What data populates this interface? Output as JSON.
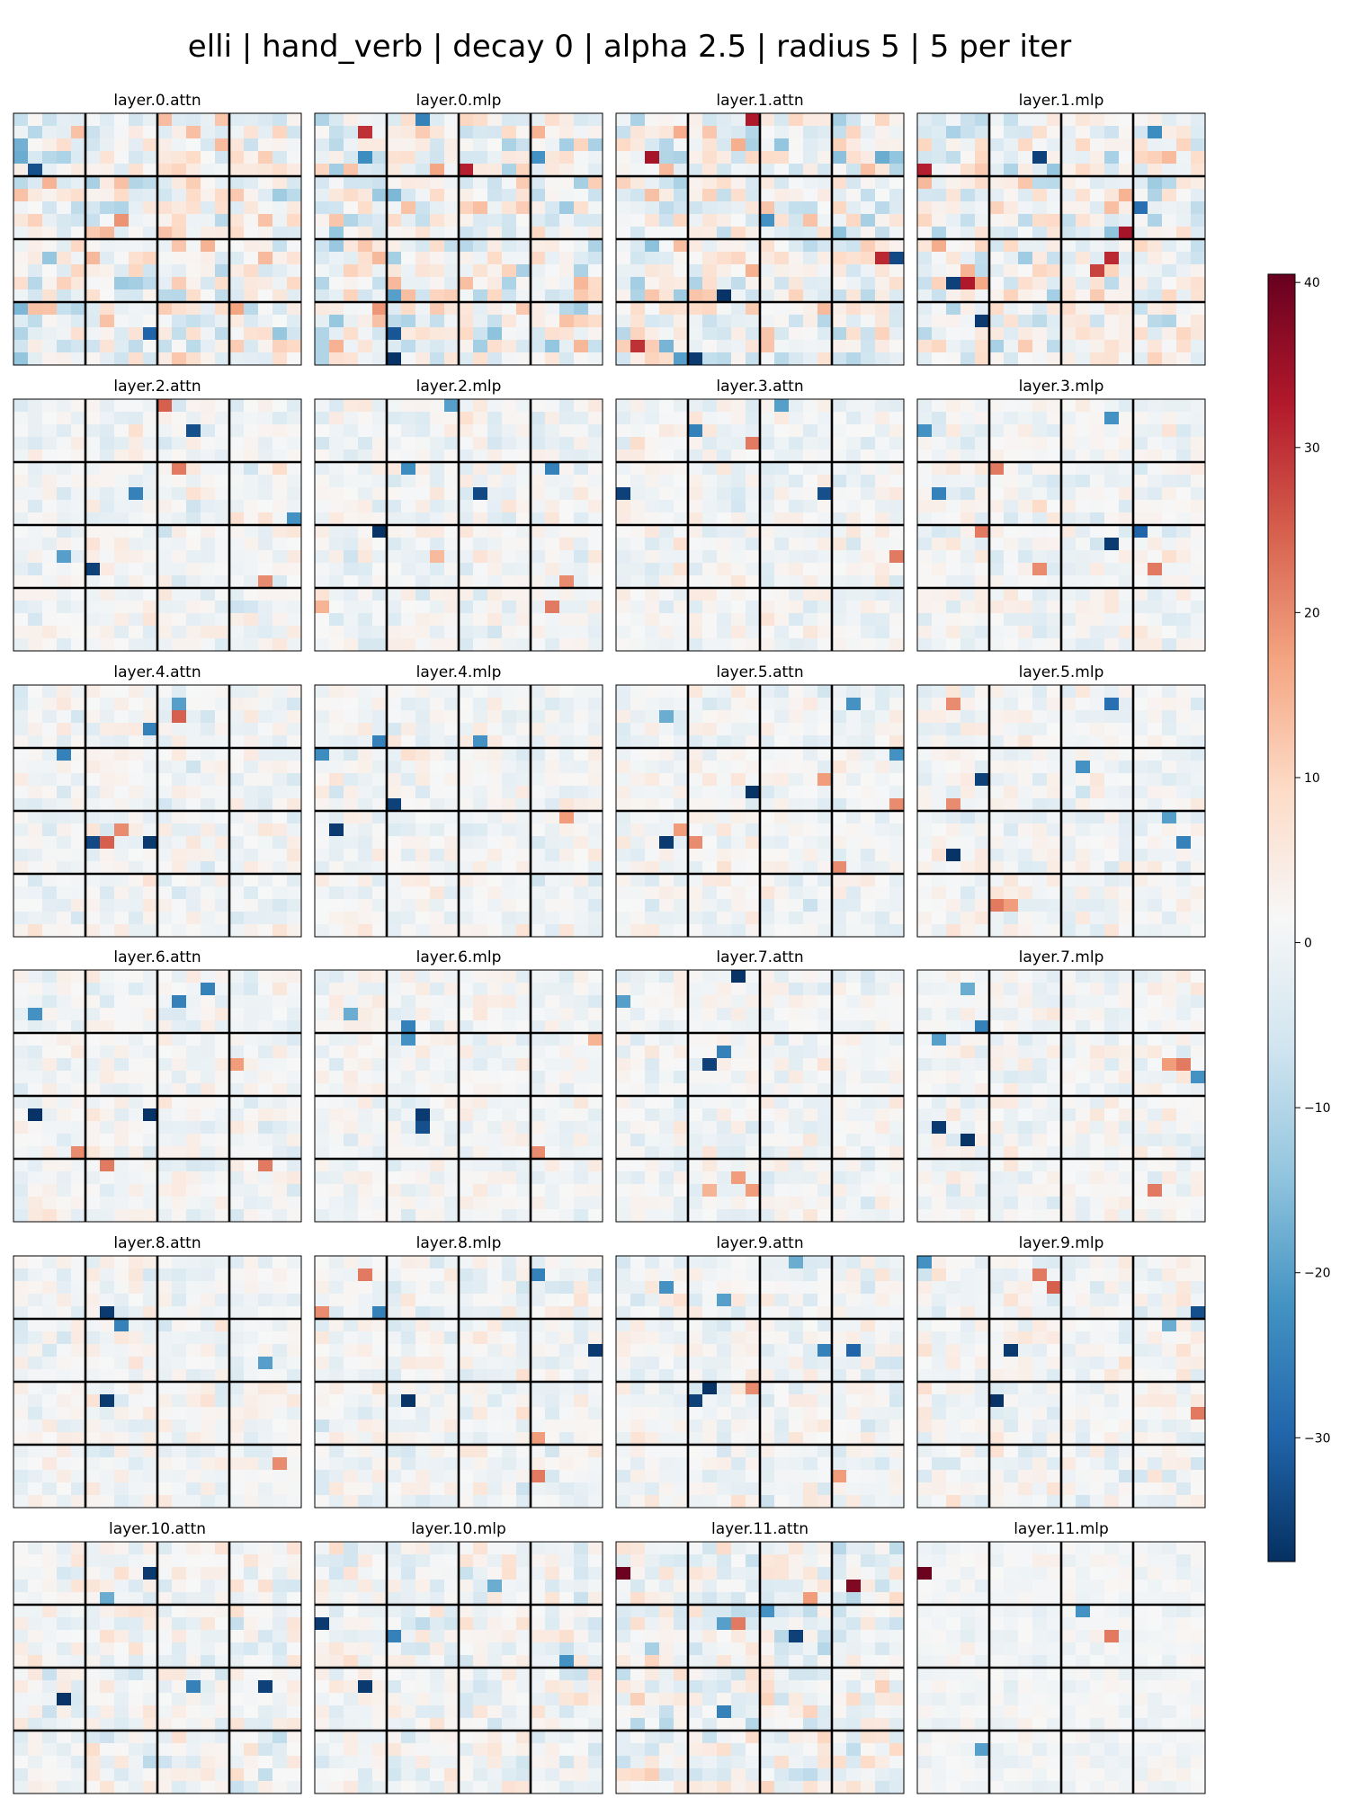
{
  "title": "elli | hand_verb | decay 0 | alpha 2.5 | radius 5 | 5 per iter",
  "chart_data": {
    "type": "heatmap",
    "title": "elli | hand_verb | decay 0 | alpha 2.5 | radius 5 | 5 per iter",
    "grid_size": 20,
    "block_size": 5,
    "colormap": "RdBu_r",
    "colorbar": {
      "min": -37.5,
      "max": 40.5,
      "ticks": [
        40,
        30,
        20,
        10,
        0,
        -10,
        -20,
        -30
      ],
      "tick_labels": [
        "40",
        "30",
        "20",
        "10",
        "0",
        "−10",
        "−20",
        "−30"
      ]
    },
    "panels": [
      {
        "name": "layer.0.attn",
        "noise": 6.5,
        "seed": 11,
        "peaks": [
          [
            4,
            1,
            -33
          ],
          [
            3,
            0,
            -18
          ],
          [
            1,
            4,
            13
          ],
          [
            17,
            9,
            -30
          ],
          [
            11,
            17,
            14
          ]
        ]
      },
      {
        "name": "layer.0.mlp",
        "noise": 6.5,
        "seed": 12,
        "peaks": [
          [
            0,
            7,
            -25
          ],
          [
            1,
            3,
            30
          ],
          [
            3,
            3,
            -23
          ],
          [
            4,
            10,
            32
          ],
          [
            17,
            5,
            -32
          ],
          [
            19,
            5,
            -37
          ],
          [
            3,
            15,
            -22
          ],
          [
            14,
            5,
            -20
          ]
        ]
      },
      {
        "name": "layer.1.attn",
        "noise": 6.0,
        "seed": 13,
        "peaks": [
          [
            0,
            9,
            33
          ],
          [
            3,
            2,
            34
          ],
          [
            8,
            10,
            -22
          ],
          [
            11,
            18,
            31
          ],
          [
            11,
            19,
            -34
          ],
          [
            14,
            7,
            -37
          ],
          [
            18,
            1,
            30
          ],
          [
            19,
            5,
            -36
          ],
          [
            19,
            4,
            -20
          ],
          [
            3,
            18,
            -18
          ]
        ]
      },
      {
        "name": "layer.1.mlp",
        "noise": 6.0,
        "seed": 14,
        "peaks": [
          [
            1,
            16,
            -23
          ],
          [
            3,
            8,
            -35
          ],
          [
            4,
            0,
            32
          ],
          [
            7,
            15,
            -28
          ],
          [
            9,
            14,
            34
          ],
          [
            11,
            13,
            31
          ],
          [
            12,
            12,
            28
          ],
          [
            13,
            3,
            33
          ],
          [
            13,
            2,
            -35
          ],
          [
            16,
            4,
            -36
          ]
        ]
      },
      {
        "name": "layer.2.attn",
        "noise": 2.8,
        "seed": 21,
        "peaks": [
          [
            0,
            10,
            25
          ],
          [
            2,
            12,
            -33
          ],
          [
            5,
            11,
            22
          ],
          [
            7,
            8,
            -25
          ],
          [
            9,
            19,
            -22
          ],
          [
            12,
            3,
            -20
          ],
          [
            13,
            5,
            -35
          ],
          [
            14,
            17,
            20
          ]
        ]
      },
      {
        "name": "layer.2.mlp",
        "noise": 2.8,
        "seed": 22,
        "peaks": [
          [
            0,
            9,
            -20
          ],
          [
            5,
            6,
            -23
          ],
          [
            5,
            16,
            -25
          ],
          [
            7,
            11,
            -34
          ],
          [
            10,
            4,
            -37
          ],
          [
            12,
            8,
            14
          ],
          [
            14,
            17,
            20
          ],
          [
            16,
            0,
            15
          ],
          [
            16,
            16,
            22
          ]
        ]
      },
      {
        "name": "layer.3.attn",
        "noise": 2.8,
        "seed": 23,
        "peaks": [
          [
            0,
            11,
            -20
          ],
          [
            2,
            5,
            -25
          ],
          [
            3,
            9,
            22
          ],
          [
            7,
            0,
            -35
          ],
          [
            7,
            14,
            -33
          ],
          [
            12,
            19,
            22
          ]
        ]
      },
      {
        "name": "layer.3.mlp",
        "noise": 2.8,
        "seed": 24,
        "peaks": [
          [
            1,
            13,
            -22
          ],
          [
            2,
            0,
            -22
          ],
          [
            5,
            5,
            22
          ],
          [
            7,
            1,
            -25
          ],
          [
            10,
            4,
            22
          ],
          [
            10,
            15,
            -30
          ],
          [
            11,
            13,
            -36
          ],
          [
            13,
            16,
            22
          ],
          [
            13,
            8,
            20
          ]
        ]
      },
      {
        "name": "layer.4.attn",
        "noise": 2.6,
        "seed": 31,
        "peaks": [
          [
            1,
            11,
            -20
          ],
          [
            2,
            11,
            25
          ],
          [
            3,
            9,
            -25
          ],
          [
            5,
            3,
            -25
          ],
          [
            11,
            7,
            20
          ],
          [
            12,
            9,
            -36
          ],
          [
            12,
            5,
            -34
          ],
          [
            12,
            6,
            25
          ]
        ]
      },
      {
        "name": "layer.4.mlp",
        "noise": 2.6,
        "seed": 32,
        "peaks": [
          [
            4,
            4,
            -25
          ],
          [
            4,
            11,
            -22
          ],
          [
            5,
            0,
            -23
          ],
          [
            9,
            5,
            -35
          ],
          [
            11,
            1,
            -36
          ],
          [
            10,
            17,
            18
          ]
        ]
      },
      {
        "name": "layer.5.attn",
        "noise": 2.6,
        "seed": 33,
        "peaks": [
          [
            1,
            16,
            -22
          ],
          [
            2,
            3,
            -18
          ],
          [
            5,
            19,
            -22
          ],
          [
            7,
            14,
            18
          ],
          [
            8,
            9,
            -37
          ],
          [
            9,
            19,
            20
          ],
          [
            11,
            4,
            18
          ],
          [
            12,
            3,
            -36
          ],
          [
            12,
            5,
            20
          ],
          [
            14,
            15,
            20
          ]
        ]
      },
      {
        "name": "layer.5.mlp",
        "noise": 2.6,
        "seed": 34,
        "peaks": [
          [
            1,
            2,
            20
          ],
          [
            1,
            13,
            -28
          ],
          [
            6,
            11,
            -22
          ],
          [
            7,
            4,
            -35
          ],
          [
            9,
            2,
            20
          ],
          [
            10,
            17,
            -20
          ],
          [
            12,
            18,
            -25
          ],
          [
            13,
            2,
            -37
          ],
          [
            17,
            5,
            22
          ],
          [
            17,
            6,
            18
          ]
        ]
      },
      {
        "name": "layer.6.attn",
        "noise": 2.4,
        "seed": 41,
        "peaks": [
          [
            1,
            13,
            -25
          ],
          [
            2,
            11,
            -25
          ],
          [
            3,
            1,
            -22
          ],
          [
            11,
            1,
            -37
          ],
          [
            11,
            9,
            -37
          ],
          [
            7,
            15,
            18
          ],
          [
            14,
            4,
            20
          ],
          [
            15,
            6,
            22
          ],
          [
            15,
            17,
            22
          ]
        ]
      },
      {
        "name": "layer.6.mlp",
        "noise": 2.4,
        "seed": 42,
        "peaks": [
          [
            4,
            6,
            -25
          ],
          [
            5,
            6,
            -22
          ],
          [
            3,
            2,
            -18
          ],
          [
            11,
            7,
            -36
          ],
          [
            12,
            7,
            -33
          ],
          [
            14,
            15,
            20
          ],
          [
            5,
            19,
            15
          ]
        ]
      },
      {
        "name": "layer.7.attn",
        "noise": 2.4,
        "seed": 43,
        "peaks": [
          [
            0,
            8,
            -37
          ],
          [
            2,
            0,
            -20
          ],
          [
            6,
            7,
            -25
          ],
          [
            7,
            6,
            -35
          ],
          [
            16,
            8,
            18
          ],
          [
            17,
            6,
            15
          ],
          [
            17,
            9,
            18
          ]
        ]
      },
      {
        "name": "layer.7.mlp",
        "noise": 2.4,
        "seed": 44,
        "peaks": [
          [
            1,
            3,
            -18
          ],
          [
            4,
            4,
            -25
          ],
          [
            5,
            1,
            -20
          ],
          [
            7,
            18,
            22
          ],
          [
            7,
            17,
            18
          ],
          [
            8,
            19,
            -22
          ],
          [
            12,
            1,
            -36
          ],
          [
            13,
            3,
            -37
          ],
          [
            17,
            16,
            22
          ]
        ]
      },
      {
        "name": "layer.8.attn",
        "noise": 2.6,
        "seed": 51,
        "peaks": [
          [
            4,
            6,
            -36
          ],
          [
            5,
            7,
            -25
          ],
          [
            8,
            17,
            -20
          ],
          [
            11,
            6,
            -36
          ],
          [
            16,
            18,
            20
          ]
        ]
      },
      {
        "name": "layer.8.mlp",
        "noise": 2.8,
        "seed": 52,
        "peaks": [
          [
            1,
            15,
            -25
          ],
          [
            1,
            3,
            22
          ],
          [
            4,
            4,
            -25
          ],
          [
            4,
            0,
            20
          ],
          [
            7,
            19,
            -36
          ],
          [
            11,
            6,
            -37
          ],
          [
            17,
            15,
            22
          ],
          [
            14,
            15,
            18
          ]
        ]
      },
      {
        "name": "layer.9.attn",
        "noise": 2.8,
        "seed": 53,
        "peaks": [
          [
            0,
            12,
            -18
          ],
          [
            2,
            3,
            -22
          ],
          [
            3,
            7,
            -20
          ],
          [
            7,
            14,
            -25
          ],
          [
            7,
            16,
            -30
          ],
          [
            10,
            6,
            -37
          ],
          [
            11,
            5,
            -35
          ],
          [
            10,
            9,
            20
          ],
          [
            17,
            15,
            18
          ]
        ]
      },
      {
        "name": "layer.9.mlp",
        "noise": 2.8,
        "seed": 54,
        "peaks": [
          [
            0,
            0,
            -22
          ],
          [
            1,
            8,
            22
          ],
          [
            2,
            9,
            25
          ],
          [
            4,
            19,
            -33
          ],
          [
            7,
            6,
            -36
          ],
          [
            11,
            5,
            -37
          ],
          [
            12,
            19,
            22
          ],
          [
            5,
            17,
            -18
          ]
        ]
      },
      {
        "name": "layer.10.attn",
        "noise": 3.4,
        "seed": 61,
        "peaks": [
          [
            2,
            9,
            -36
          ],
          [
            11,
            12,
            -25
          ],
          [
            11,
            17,
            -35
          ],
          [
            12,
            3,
            -37
          ],
          [
            4,
            6,
            -18
          ]
        ]
      },
      {
        "name": "layer.10.mlp",
        "noise": 3.4,
        "seed": 62,
        "peaks": [
          [
            6,
            0,
            -36
          ],
          [
            7,
            5,
            -25
          ],
          [
            9,
            17,
            -22
          ],
          [
            11,
            3,
            -36
          ],
          [
            3,
            12,
            -18
          ]
        ]
      },
      {
        "name": "layer.11.attn",
        "noise": 4.5,
        "seed": 63,
        "peaks": [
          [
            2,
            0,
            40
          ],
          [
            3,
            16,
            38
          ],
          [
            5,
            10,
            -22
          ],
          [
            6,
            7,
            -20
          ],
          [
            6,
            8,
            22
          ],
          [
            7,
            12,
            -35
          ],
          [
            13,
            7,
            -25
          ],
          [
            4,
            13,
            18
          ]
        ]
      },
      {
        "name": "layer.11.mlp",
        "noise": 1.4,
        "seed": 64,
        "peaks": [
          [
            2,
            0,
            40
          ],
          [
            5,
            11,
            -22
          ],
          [
            7,
            13,
            22
          ],
          [
            16,
            4,
            -20
          ]
        ]
      }
    ]
  }
}
